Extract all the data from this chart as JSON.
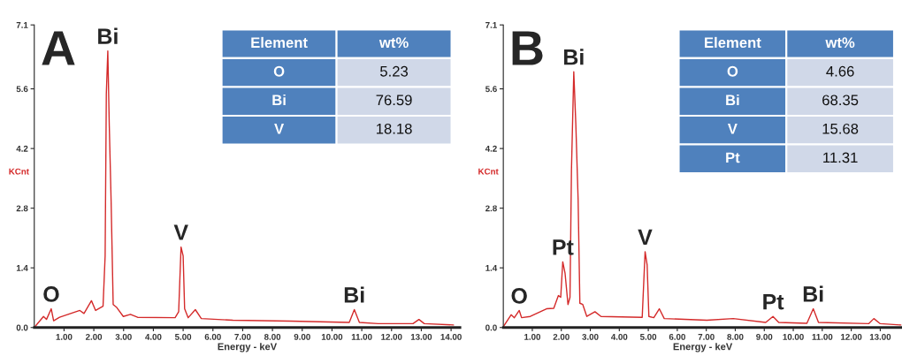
{
  "chart_data": [
    {
      "type": "line",
      "title": "A",
      "xlabel": "Energy - keV",
      "ylabel": "KCnt",
      "xlim": [
        0,
        14.3
      ],
      "ylim": [
        0,
        7.1
      ],
      "xticks": [
        {
          "value": 1,
          "label": "1.00"
        },
        {
          "value": 2,
          "label": "2.00"
        },
        {
          "value": 3,
          "label": "3.00"
        },
        {
          "value": 4,
          "label": "4.00"
        },
        {
          "value": 5,
          "label": "5.00"
        },
        {
          "value": 6,
          "label": "6.00"
        },
        {
          "value": 7,
          "label": "7.00"
        },
        {
          "value": 8,
          "label": "8.00"
        },
        {
          "value": 9,
          "label": "9.00"
        },
        {
          "value": 10,
          "label": "10.00"
        },
        {
          "value": 11,
          "label": "11.00"
        },
        {
          "value": 12,
          "label": "12.00"
        },
        {
          "value": 13,
          "label": "13.00"
        },
        {
          "value": 14,
          "label": "14.00"
        }
      ],
      "yticks": [
        {
          "value": 0,
          "label": "0.0"
        },
        1.4,
        2.8,
        4.2,
        5.6,
        7.1
      ],
      "grid": false,
      "legend": false,
      "marker": "none",
      "line_style": "solid",
      "series": [
        {
          "color": "#d42a2a",
          "x": [
            0,
            0.31,
            0.41,
            0.57,
            0.65,
            0.85,
            1.53,
            1.67,
            1.92,
            2.06,
            2.31,
            2.38,
            2.42,
            2.47,
            2.52,
            2.58,
            2.65,
            2.77,
            2.99,
            3.23,
            3.47,
            4.73,
            4.85,
            4.93,
            5.0,
            5.05,
            5.17,
            5.41,
            5.61,
            6.67,
            8.6,
            10.58,
            10.75,
            10.92,
            11.55,
            12.72,
            12.92,
            13.1,
            14.08
          ],
          "values": [
            0,
            0.26,
            0.19,
            0.44,
            0.16,
            0.24,
            0.4,
            0.33,
            0.63,
            0.4,
            0.5,
            1.68,
            5.48,
            6.49,
            4.72,
            3.0,
            0.54,
            0.47,
            0.26,
            0.31,
            0.24,
            0.23,
            0.37,
            1.89,
            1.68,
            0.44,
            0.23,
            0.42,
            0.21,
            0.17,
            0.15,
            0.12,
            0.42,
            0.12,
            0.09,
            0.09,
            0.19,
            0.09,
            0.06
          ]
        }
      ],
      "annotations": [
        {
          "text": "Bi",
          "x": 2.47,
          "y": 6.49
        },
        {
          "text": "V",
          "x": 4.93,
          "y": 1.89
        },
        {
          "text": "O",
          "x": 0.57,
          "y": 0.44
        },
        {
          "text": "Bi",
          "x": 10.75,
          "y": 0.42
        },
        "Element",
        "wt%",
        "O",
        "5.23",
        "Bi",
        "76.59",
        "V",
        "18.18"
      ]
    },
    {
      "type": "line",
      "title": "B",
      "xlabel": "Energy - keV",
      "ylabel": "KCnt",
      "xlim": [
        0,
        13.75
      ],
      "ylim": [
        0,
        7.1
      ],
      "xticks": [
        {
          "value": 1,
          "label": "1.00"
        },
        {
          "value": 2,
          "label": "2.00"
        },
        {
          "value": 3,
          "label": "3.00"
        },
        {
          "value": 4,
          "label": "4.00"
        },
        {
          "value": 5,
          "label": "5.00"
        },
        {
          "value": 6,
          "label": "6.00"
        },
        {
          "value": 7,
          "label": "7.00"
        },
        {
          "value": 8,
          "label": "8.00"
        },
        {
          "value": 9,
          "label": "9.00"
        },
        {
          "value": 10,
          "label": "10.00"
        },
        {
          "value": 11,
          "label": "11.00"
        },
        {
          "value": 12,
          "label": "12.00"
        },
        {
          "value": 13,
          "label": "13.00"
        }
      ],
      "yticks": [
        {
          "value": 0,
          "label": "0.0"
        },
        1.4,
        2.8,
        4.2,
        5.6,
        7.1
      ],
      "grid": false,
      "legend": false,
      "marker": "none",
      "line_style": "solid",
      "series": [
        {
          "color": "#d42a2a",
          "x": [
            0,
            0.27,
            0.38,
            0.55,
            0.63,
            0.93,
            1.49,
            1.74,
            1.9,
            1.98,
            2.05,
            2.13,
            2.23,
            2.3,
            2.35,
            2.43,
            2.5,
            2.58,
            2.64,
            2.74,
            2.88,
            3.16,
            3.37,
            4.79,
            4.89,
            4.96,
            5.02,
            5.19,
            5.38,
            5.55,
            7.02,
            7.93,
            9.05,
            9.3,
            9.5,
            10.47,
            10.69,
            10.87,
            12.6,
            12.78,
            13.0,
            13.71
          ],
          "values": [
            0.02,
            0.3,
            0.23,
            0.4,
            0.23,
            0.26,
            0.44,
            0.45,
            0.75,
            0.71,
            1.54,
            1.27,
            0.54,
            0.71,
            3.69,
            6.0,
            4.79,
            3.0,
            0.57,
            0.54,
            0.26,
            0.37,
            0.26,
            0.24,
            1.78,
            1.47,
            0.26,
            0.23,
            0.44,
            0.21,
            0.17,
            0.21,
            0.12,
            0.26,
            0.12,
            0.1,
            0.44,
            0.12,
            0.09,
            0.21,
            0.09,
            0.06
          ]
        }
      ],
      "annotations": [
        {
          "text": "Bi",
          "x": 2.43,
          "y": 6.0
        },
        {
          "text": "Pt",
          "x": 2.05,
          "y": 1.54
        },
        {
          "text": "V",
          "x": 4.89,
          "y": 1.78
        },
        {
          "text": "O",
          "x": 0.55,
          "y": 0.4
        },
        {
          "text": "Pt",
          "x": 9.3,
          "y": 0.26
        },
        {
          "text": "Bi",
          "x": 10.69,
          "y": 0.44
        },
        "Element",
        "wt%",
        "O",
        "4.66",
        "Bi",
        "68.35",
        "V",
        "15.68",
        "Pt",
        "11.31"
      ]
    }
  ]
}
